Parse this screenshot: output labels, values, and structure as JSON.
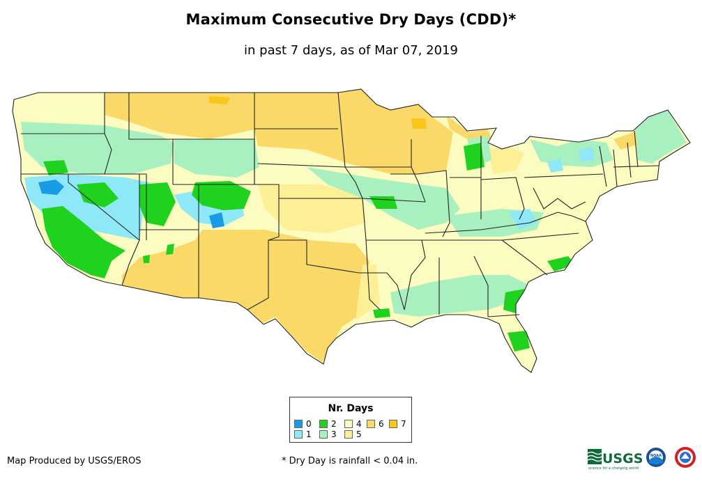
{
  "header": {
    "title": "Maximum Consecutive Dry Days (CDD)*",
    "subtitle": "in past 7 days, as of Mar 07, 2019"
  },
  "legend": {
    "title": "Nr. Days",
    "items": [
      {
        "label": "0",
        "color": "#1a9be6"
      },
      {
        "label": "1",
        "color": "#8ee8f7"
      },
      {
        "label": "2",
        "color": "#1ed21e"
      },
      {
        "label": "3",
        "color": "#a9f0c0"
      },
      {
        "label": "4",
        "color": "#fcfcc0"
      },
      {
        "label": "5",
        "color": "#fcef96"
      },
      {
        "label": "6",
        "color": "#fbd968"
      },
      {
        "label": "7",
        "color": "#fbc61c"
      }
    ]
  },
  "footer": {
    "credit": "Map Produced by USGS/EROS",
    "note": "* Dry Day is rainfall < 0.04 in."
  },
  "logos": {
    "usgs": "USGS",
    "usgs_tagline": "science for a changing world",
    "noaa": "NOAA"
  },
  "colors": {
    "state_border": "#222222",
    "water": "#ffffff"
  }
}
